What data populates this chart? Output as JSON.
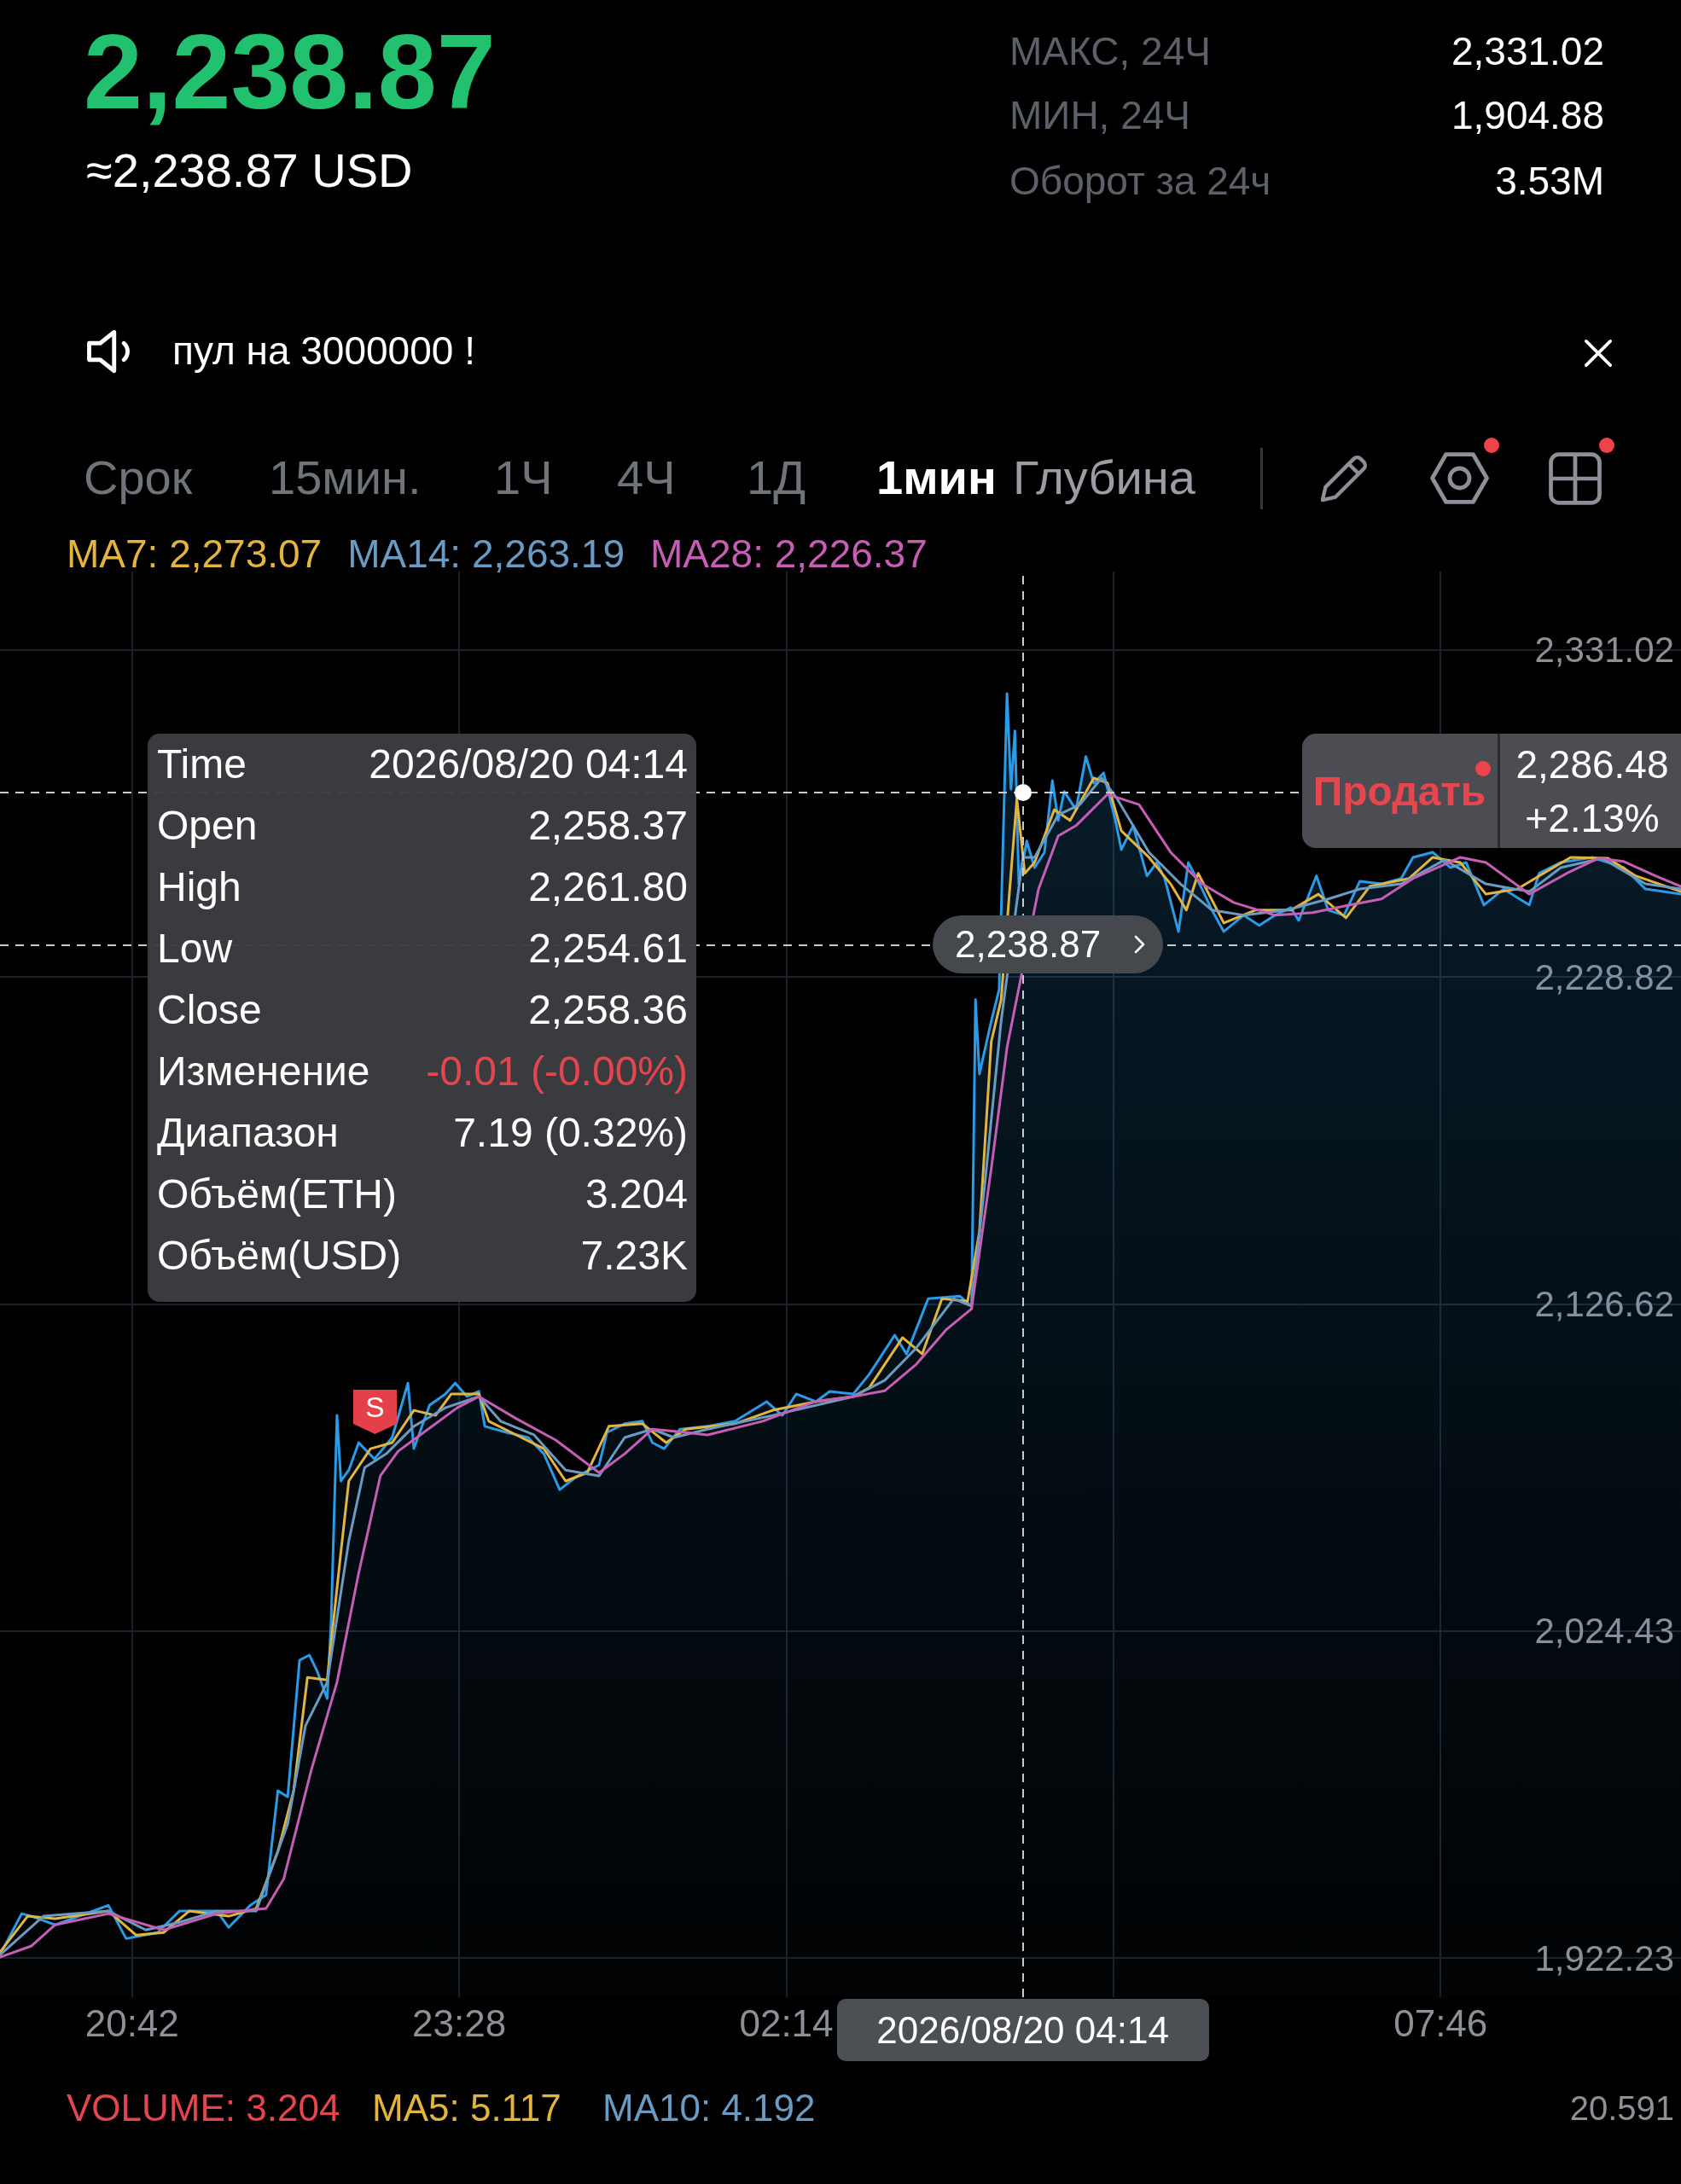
{
  "chart_data": {
    "type": "line",
    "title": "2,238.87",
    "subtitle": "≈2,238.87 USD",
    "xlim": [
      "2026-08-19T19:35",
      "2026-08-20T09:48"
    ],
    "xticks": [
      {
        "value": "2026-08-19T20:42",
        "label": "20:42"
      },
      {
        "value": "2026-08-19T23:28",
        "label": "23:28"
      },
      {
        "value": "2026-08-20T02:14",
        "label": "02:14"
      },
      {
        "value": "2026-08-20T05:00",
        "label": null
      },
      {
        "value": "2026-08-20T07:46",
        "label": "07:46"
      }
    ],
    "ylim": [
      1910,
      2355.5
    ],
    "yticks": [
      {
        "value": 1922.23,
        "label": "1,922.23"
      },
      {
        "value": 2024.43,
        "label": "2,024.43"
      },
      {
        "value": 2126.62,
        "label": "2,126.62"
      },
      {
        "value": 2228.82,
        "label": "2,228.82"
      },
      {
        "value": 2331.02,
        "label": "2,331.02"
      }
    ],
    "grid": true,
    "series": [
      {
        "type": "area",
        "color": "#2b9be8",
        "x": [
          "2026-08-19T19:35",
          "2026-08-19T19:46",
          "2026-08-19T19:51",
          "2026-08-19T20:03",
          "2026-08-19T20:30",
          "2026-08-19T20:39",
          "2026-08-19T20:55",
          "2026-08-19T21:06",
          "2026-08-19T21:25",
          "2026-08-19T21:31",
          "2026-08-19T21:42",
          "2026-08-19T21:50",
          "2026-08-19T21:56",
          "2026-08-19T22:01",
          "2026-08-19T22:07",
          "2026-08-19T22:12",
          "2026-08-19T22:16",
          "2026-08-19T22:21",
          "2026-08-19T22:23",
          "2026-08-19T22:26",
          "2026-08-19T22:28",
          "2026-08-19T22:32",
          "2026-08-19T22:37",
          "2026-08-19T22:45",
          "2026-08-19T22:54",
          "2026-08-19T23:02",
          "2026-08-19T23:05",
          "2026-08-19T23:13",
          "2026-08-19T23:21",
          "2026-08-19T23:26",
          "2026-08-19T23:32",
          "2026-08-19T23:38",
          "2026-08-19T23:41",
          "2026-08-19T23:52",
          "2026-08-20T00:03",
          "2026-08-20T00:11",
          "2026-08-20T00:19",
          "2026-08-20T00:28",
          "2026-08-20T00:39",
          "2026-08-20T00:43",
          "2026-08-20T00:52",
          "2026-08-20T01:01",
          "2026-08-20T01:06",
          "2026-08-20T01:12",
          "2026-08-20T01:20",
          "2026-08-20T01:34",
          "2026-08-20T01:48",
          "2026-08-20T02:04",
          "2026-08-20T02:12",
          "2026-08-20T02:19",
          "2026-08-20T02:29",
          "2026-08-20T02:36",
          "2026-08-20T02:48",
          "2026-08-20T02:56",
          "2026-08-20T03:09",
          "2026-08-20T03:15",
          "2026-08-20T03:26",
          "2026-08-20T03:42",
          "2026-08-20T03:48",
          "2026-08-20T03:50",
          "2026-08-20T03:52",
          "2026-08-20T03:58",
          "2026-08-20T04:02",
          "2026-08-20T04:06",
          "2026-08-20T04:08",
          "2026-08-20T04:10",
          "2026-08-20T04:12",
          "2026-08-20T04:16",
          "2026-08-20T04:20",
          "2026-08-20T04:25",
          "2026-08-20T04:29",
          "2026-08-20T04:32",
          "2026-08-20T04:35",
          "2026-08-20T04:41",
          "2026-08-20T04:46",
          "2026-08-20T04:50",
          "2026-08-20T04:55",
          "2026-08-20T05:01",
          "2026-08-20T05:04",
          "2026-08-20T05:10",
          "2026-08-20T05:17",
          "2026-08-20T05:22",
          "2026-08-20T05:26",
          "2026-08-20T05:33",
          "2026-08-20T05:38",
          "2026-08-20T05:45",
          "2026-08-20T05:50",
          "2026-08-20T05:56",
          "2026-08-20T06:06",
          "2026-08-20T06:14",
          "2026-08-20T06:22",
          "2026-08-20T06:30",
          "2026-08-20T06:34",
          "2026-08-20T06:43",
          "2026-08-20T06:49",
          "2026-08-20T06:57",
          "2026-08-20T07:05",
          "2026-08-20T07:16",
          "2026-08-20T07:26",
          "2026-08-20T07:32",
          "2026-08-20T07:42",
          "2026-08-20T07:51",
          "2026-08-20T07:59",
          "2026-08-20T08:08",
          "2026-08-20T08:18",
          "2026-08-20T08:31",
          "2026-08-20T08:36",
          "2026-08-20T08:47",
          "2026-08-20T09:03",
          "2026-08-20T09:19",
          "2026-08-20T09:30",
          "2026-08-20T09:48"
        ],
        "values": [
          1923.2,
          1936.1,
          1935.3,
          1932.6,
          1938.7,
          1928.3,
          1930.2,
          1936.9,
          1936.9,
          1931.8,
          1938.7,
          1941.9,
          1974.5,
          1972.6,
          2015.3,
          2016.9,
          2011.8,
          2003.3,
          2027.0,
          2091.8,
          2071.3,
          2074.7,
          2083.3,
          2078.2,
          2084.9,
          2101.9,
          2081.4,
          2095.0,
          2098.5,
          2101.9,
          2097.7,
          2099.3,
          2088.4,
          2086.5,
          2084.9,
          2079.8,
          2068.6,
          2072.9,
          2076.3,
          2086.5,
          2089.2,
          2090.0,
          2083.3,
          2081.4,
          2087.5,
          2088.4,
          2090.0,
          2096.1,
          2091.8,
          2098.5,
          2096.1,
          2099.3,
          2098.5,
          2104.6,
          2116.9,
          2111.0,
          2128.3,
          2129.1,
          2125.9,
          2221.7,
          2198.5,
          2215.0,
          2224.9,
          2317.4,
          2287.5,
          2305.7,
          2257.9,
          2271.3,
          2263.0,
          2267.8,
          2290.2,
          2277.7,
          2286.8,
          2281.1,
          2297.7,
          2289.4,
          2292.6,
          2277.7,
          2268.6,
          2276.1,
          2260.4,
          2264.6,
          2259.6,
          2243.0,
          2264.6,
          2256.3,
          2249.7,
          2243.0,
          2248.1,
          2244.9,
          2248.1,
          2250.5,
          2246.5,
          2260.4,
          2249.7,
          2248.1,
          2258.7,
          2257.9,
          2259.6,
          2266.2,
          2267.8,
          2263.0,
          2264.6,
          2251.3,
          2256.3,
          2251.3,
          2261.2,
          2264.6,
          2266.2,
          2263.0,
          2256.3,
          2254.7
        ]
      },
      {
        "name": "MA7: 2,273.07",
        "color": "#e3b53f",
        "x": [
          "2026-08-19T19:35",
          "2026-08-19T19:49",
          "2026-08-19T20:03",
          "2026-08-19T20:30",
          "2026-08-19T20:44",
          "2026-08-19T20:58",
          "2026-08-19T21:11",
          "2026-08-19T21:31",
          "2026-08-19T21:45",
          "2026-08-19T21:56",
          "2026-08-19T22:04",
          "2026-08-19T22:11",
          "2026-08-19T22:21",
          "2026-08-19T22:28",
          "2026-08-19T22:32",
          "2026-08-19T22:43",
          "2026-08-19T22:54",
          "2026-08-19T23:05",
          "2026-08-19T23:16",
          "2026-08-19T23:24",
          "2026-08-19T23:38",
          "2026-08-19T23:43",
          "2026-08-19T23:57",
          "2026-08-20T00:11",
          "2026-08-20T00:22",
          "2026-08-20T00:33",
          "2026-08-20T00:44",
          "2026-08-20T01:01",
          "2026-08-20T01:13",
          "2026-08-20T01:23",
          "2026-08-20T01:48",
          "2026-08-20T02:07",
          "2026-08-20T02:29",
          "2026-08-20T02:48",
          "2026-08-20T02:56",
          "2026-08-20T03:13",
          "2026-08-20T03:23",
          "2026-08-20T03:33",
          "2026-08-20T03:46",
          "2026-08-20T03:52",
          "2026-08-20T03:58",
          "2026-08-20T04:03",
          "2026-08-20T04:08",
          "2026-08-20T04:11",
          "2026-08-20T04:15",
          "2026-08-20T04:20",
          "2026-08-20T04:30",
          "2026-08-20T04:38",
          "2026-08-20T04:50",
          "2026-08-20T04:57",
          "2026-08-20T05:04",
          "2026-08-20T05:18",
          "2026-08-20T05:29",
          "2026-08-20T05:37",
          "2026-08-20T05:43",
          "2026-08-20T05:56",
          "2026-08-20T06:12",
          "2026-08-20T06:30",
          "2026-08-20T06:44",
          "2026-08-20T06:58",
          "2026-08-20T07:10",
          "2026-08-20T07:30",
          "2026-08-20T07:42",
          "2026-08-20T07:56",
          "2026-08-20T08:09",
          "2026-08-20T08:25",
          "2026-08-20T08:36",
          "2026-08-20T08:52",
          "2026-08-20T09:11",
          "2026-08-20T09:25",
          "2026-08-20T09:48"
        ],
        "values": [
          1924.1,
          1935.3,
          1934.5,
          1936.9,
          1929.4,
          1930.2,
          1936.9,
          1935.3,
          1937.7,
          1955.5,
          1974.5,
          2009.9,
          2009.1,
          2049.2,
          2071.3,
          2081.4,
          2083.3,
          2093.4,
          2091.8,
          2098.5,
          2098.5,
          2090.0,
          2085.7,
          2081.4,
          2071.3,
          2073.9,
          2088.4,
          2089.2,
          2083.3,
          2087.5,
          2089.2,
          2093.4,
          2096.1,
          2097.7,
          2100.4,
          2116.1,
          2111.0,
          2128.3,
          2127.5,
          2149.2,
          2208.6,
          2221.7,
          2261.2,
          2284.4,
          2261.2,
          2264.6,
          2281.1,
          2277.7,
          2291.0,
          2289.4,
          2274.5,
          2266.2,
          2257.9,
          2249.7,
          2261.2,
          2245.7,
          2249.7,
          2249.7,
          2254.7,
          2247.3,
          2257.1,
          2259.6,
          2266.2,
          2264.6,
          2254.7,
          2256.3,
          2260.4,
          2266.2,
          2265.9,
          2260.4,
          2255.5
        ]
      },
      {
        "name": "MA14: 2,263.19",
        "color": "#6a9bc3",
        "x": [
          "2026-08-19T19:35",
          "2026-08-19T19:57",
          "2026-08-19T20:30",
          "2026-08-19T20:49",
          "2026-08-19T21:06",
          "2026-08-19T21:25",
          "2026-08-19T21:45",
          "2026-08-19T22:01",
          "2026-08-19T22:10",
          "2026-08-19T22:21",
          "2026-08-19T22:32",
          "2026-08-19T22:40",
          "2026-08-19T22:51",
          "2026-08-19T23:05",
          "2026-08-19T23:21",
          "2026-08-19T23:38",
          "2026-08-19T23:49",
          "2026-08-20T00:06",
          "2026-08-20T00:22",
          "2026-08-20T00:39",
          "2026-08-20T00:52",
          "2026-08-20T01:06",
          "2026-08-20T01:17",
          "2026-08-20T01:34",
          "2026-08-20T02:07",
          "2026-08-20T02:48",
          "2026-08-20T03:04",
          "2026-08-20T03:20",
          "2026-08-20T03:39",
          "2026-08-20T03:48",
          "2026-08-20T03:55",
          "2026-08-20T04:03",
          "2026-08-20T04:14",
          "2026-08-20T04:20",
          "2026-08-20T04:32",
          "2026-08-20T04:43",
          "2026-08-20T04:54",
          "2026-08-20T05:02",
          "2026-08-20T05:18",
          "2026-08-20T05:34",
          "2026-08-20T05:50",
          "2026-08-20T06:06",
          "2026-08-20T06:28",
          "2026-08-20T06:49",
          "2026-08-20T07:05",
          "2026-08-20T07:26",
          "2026-08-20T07:48",
          "2026-08-20T08:09",
          "2026-08-20T08:31",
          "2026-08-20T08:47",
          "2026-08-20T09:08",
          "2026-08-20T09:30",
          "2026-08-20T09:48"
        ],
        "values": [
          1923.2,
          1935.3,
          1936.9,
          1931.0,
          1933.4,
          1936.9,
          1936.9,
          1964.1,
          1994.8,
          2008.4,
          2052.6,
          2075.5,
          2079.8,
          2088.4,
          2094.2,
          2097.7,
          2090.0,
          2085.7,
          2074.7,
          2072.9,
          2084.9,
          2087.5,
          2084.9,
          2087.5,
          2091.8,
          2097.7,
          2102.8,
          2112.9,
          2128.3,
          2125.9,
          2165.7,
          2215.0,
          2266.2,
          2266.2,
          2279.5,
          2282.7,
          2291.0,
          2284.4,
          2267.8,
          2257.9,
          2249.7,
          2248.1,
          2249.7,
          2253.2,
          2256.3,
          2257.9,
          2265.4,
          2257.9,
          2255.5,
          2263.0,
          2265.9,
          2257.9,
          2256.3
        ]
      },
      {
        "name": "MA28: 2,226.37",
        "color": "#c55eb4",
        "x": [
          "2026-08-19T19:35",
          "2026-08-19T19:51",
          "2026-08-19T20:03",
          "2026-08-19T20:30",
          "2026-08-19T20:58",
          "2026-08-19T21:25",
          "2026-08-19T21:50",
          "2026-08-19T21:59",
          "2026-08-19T22:13",
          "2026-08-19T22:26",
          "2026-08-19T22:37",
          "2026-08-19T22:48",
          "2026-08-19T22:57",
          "2026-08-19T23:10",
          "2026-08-19T23:27",
          "2026-08-19T23:38",
          "2026-08-19T23:57",
          "2026-08-20T00:17",
          "2026-08-20T00:39",
          "2026-08-20T00:52",
          "2026-08-20T01:06",
          "2026-08-20T01:23",
          "2026-08-20T01:34",
          "2026-08-20T02:02",
          "2026-08-20T02:29",
          "2026-08-20T02:48",
          "2026-08-20T03:04",
          "2026-08-20T03:20",
          "2026-08-20T03:35",
          "2026-08-20T03:48",
          "2026-08-20T03:58",
          "2026-08-20T04:06",
          "2026-08-20T04:22",
          "2026-08-20T04:32",
          "2026-08-20T04:41",
          "2026-08-20T04:57",
          "2026-08-20T05:13",
          "2026-08-20T05:29",
          "2026-08-20T05:45",
          "2026-08-20T06:01",
          "2026-08-20T06:22",
          "2026-08-20T06:41",
          "2026-08-20T07:00",
          "2026-08-20T07:16",
          "2026-08-20T07:32",
          "2026-08-20T07:56",
          "2026-08-20T08:09",
          "2026-08-20T08:31",
          "2026-08-20T08:50",
          "2026-08-20T09:06",
          "2026-08-20T09:19",
          "2026-08-20T09:35",
          "2026-08-20T09:48"
        ],
        "values": [
          1922.5,
          1926.0,
          1932.6,
          1936.1,
          1931.0,
          1936.1,
          1937.7,
          1947.0,
          1981.1,
          2008.4,
          2042.5,
          2072.9,
          2080.6,
          2086.5,
          2094.2,
          2097.7,
          2090.8,
          2084.1,
          2073.9,
          2079.8,
          2087.5,
          2086.5,
          2085.7,
          2090.0,
          2096.2,
          2097.7,
          2099.5,
          2107.8,
          2118.5,
          2125.1,
          2168.9,
          2206.8,
          2256.3,
          2272.9,
          2276.1,
          2285.9,
          2282.7,
          2267.8,
          2257.9,
          2252.1,
          2248.1,
          2248.9,
          2251.3,
          2253.2,
          2259.6,
          2266.2,
          2264.6,
          2254.7,
          2261.2,
          2265.9,
          2264.9,
          2260.4,
          2257.1
        ]
      }
    ],
    "ref_lines": [
      {
        "axis": "y",
        "value": 2238.87,
        "label": "2,238.87",
        "color": "#c8cacd",
        "line_style": "dashed"
      },
      {
        "axis": "y",
        "value": 2286.48,
        "label": "2,286.48",
        "color": "#c8cacd",
        "line_style": "dashed"
      },
      {
        "axis": "x",
        "value": "2026-08-20T04:14",
        "label": "2026/08/20 04:14",
        "color": "#c8cacd",
        "line_style": "dashed"
      }
    ],
    "annotations": [
      "МАКС, 24Ч",
      "2,331.02",
      "МИН, 24Ч",
      "1,904.88",
      "Оборот за 24ч",
      "3.53M",
      "пул на 3000000 !",
      "Срок",
      "15мин.",
      "1Ч",
      "4Ч",
      "1Д",
      "1мин",
      "Глубина",
      "Time",
      "2026/08/20 04:14",
      "Open",
      "2,258.37",
      "High",
      "2,261.80",
      "Low",
      "2,254.61",
      "Close",
      "2,258.36",
      "Изменение",
      "-0.01 (-0.00%)",
      "Диапазон",
      "7.19 (0.32%)",
      "Объём(ETH)",
      "3.204",
      "Объём(USD)",
      "7.23K",
      "Продать",
      "+2.13%",
      "VOLUME: 3.204",
      "MA5: 5.117",
      "MA10: 4.192",
      "20.591",
      {
        "text": "S",
        "x": "2026-08-19T22:45",
        "y": 2078.2
      }
    ]
  }
}
